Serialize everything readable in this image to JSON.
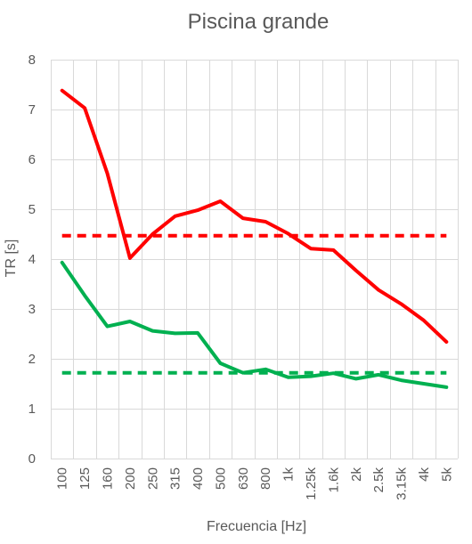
{
  "chart_data": {
    "type": "line",
    "title": "Piscina grande",
    "xlabel": "Frecuencia [Hz]",
    "ylabel": "TR [s]",
    "ylim": [
      0,
      8
    ],
    "yticks": [
      0,
      1,
      2,
      3,
      4,
      5,
      6,
      7,
      8
    ],
    "grid": true,
    "categories": [
      "100",
      "125",
      "160",
      "200",
      "250",
      "315",
      "400",
      "500",
      "630",
      "800",
      "1k",
      "1.25k",
      "1.6k",
      "2k",
      "2.5k",
      "3.15k",
      "4k",
      "5k"
    ],
    "series": [
      {
        "color": "#ff0000",
        "style": "solid",
        "values": [
          7.38,
          7.03,
          5.72,
          4.02,
          4.5,
          4.86,
          4.98,
          5.16,
          4.82,
          4.75,
          4.51,
          4.21,
          4.18,
          3.77,
          3.38,
          3.1,
          2.77,
          2.34
        ]
      },
      {
        "color": "#00b050",
        "style": "solid",
        "values": [
          3.93,
          3.27,
          2.65,
          2.75,
          2.56,
          2.51,
          2.52,
          1.91,
          1.72,
          1.79,
          1.63,
          1.65,
          1.71,
          1.6,
          1.68,
          1.57,
          1.5,
          1.43
        ]
      },
      {
        "color": "#ff0000",
        "style": "dashed",
        "values": [
          4.47,
          4.47,
          4.47,
          4.47,
          4.47,
          4.47,
          4.47,
          4.47,
          4.47,
          4.47,
          4.47,
          4.47,
          4.47,
          4.47,
          4.47,
          4.47,
          4.47,
          4.47
        ]
      },
      {
        "color": "#00b050",
        "style": "dashed",
        "values": [
          1.72,
          1.72,
          1.72,
          1.72,
          1.72,
          1.72,
          1.72,
          1.72,
          1.72,
          1.72,
          1.72,
          1.72,
          1.72,
          1.72,
          1.72,
          1.72,
          1.72,
          1.72
        ]
      }
    ]
  }
}
